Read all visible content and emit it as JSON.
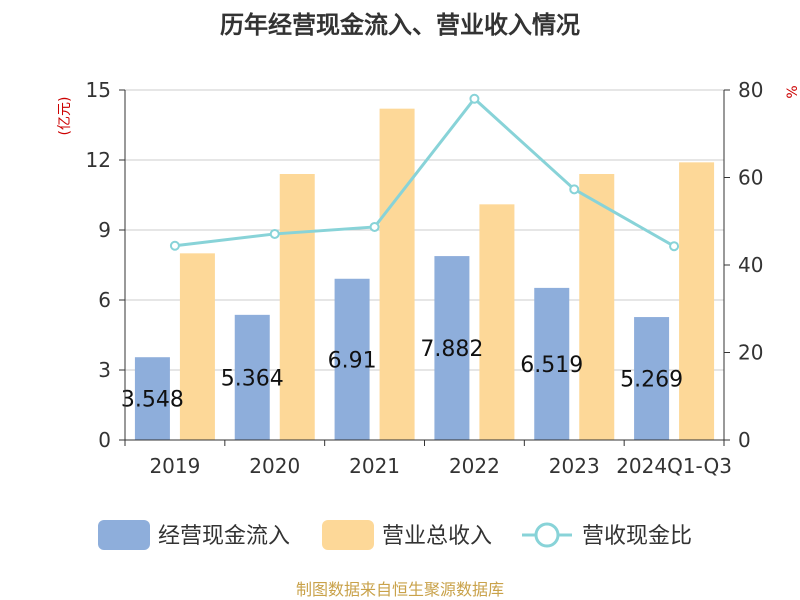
{
  "chart_data": {
    "type": "bar",
    "title": "历年经营现金流入、营业收入情况",
    "categories": [
      "2019",
      "2020",
      "2021",
      "2022",
      "2023",
      "2024Q1-Q3"
    ],
    "y_left": {
      "unit": "(亿元)",
      "min": 0,
      "max": 15,
      "ticks": [
        "0",
        "3",
        "6",
        "9",
        "12",
        "15"
      ]
    },
    "y_right": {
      "unit": "%",
      "min": 0,
      "max": 80,
      "ticks": [
        "0",
        "20",
        "40",
        "60",
        "80"
      ]
    },
    "series": [
      {
        "name": "经营现金流入",
        "kind": "bar",
        "axis": "left",
        "color": "#8eaedb",
        "values": [
          3.548,
          5.364,
          6.91,
          7.882,
          6.519,
          5.269
        ],
        "labels": [
          "3.548",
          "5.364",
          "6.91",
          "7.882",
          "6.519",
          "5.269"
        ]
      },
      {
        "name": "营业总收入",
        "kind": "bar",
        "axis": "left",
        "color": "#fdd898",
        "values": [
          8.0,
          11.4,
          14.2,
          10.1,
          11.4,
          11.9
        ]
      },
      {
        "name": "营收现金比",
        "kind": "line",
        "axis": "right",
        "color": "#88d3d8",
        "values": [
          44.4,
          47.1,
          48.7,
          78.0,
          57.3,
          44.3
        ]
      }
    ],
    "grid": true,
    "legend_position": "bottom"
  },
  "footer": {
    "source": "制图数据来自恒生聚源数据库"
  }
}
